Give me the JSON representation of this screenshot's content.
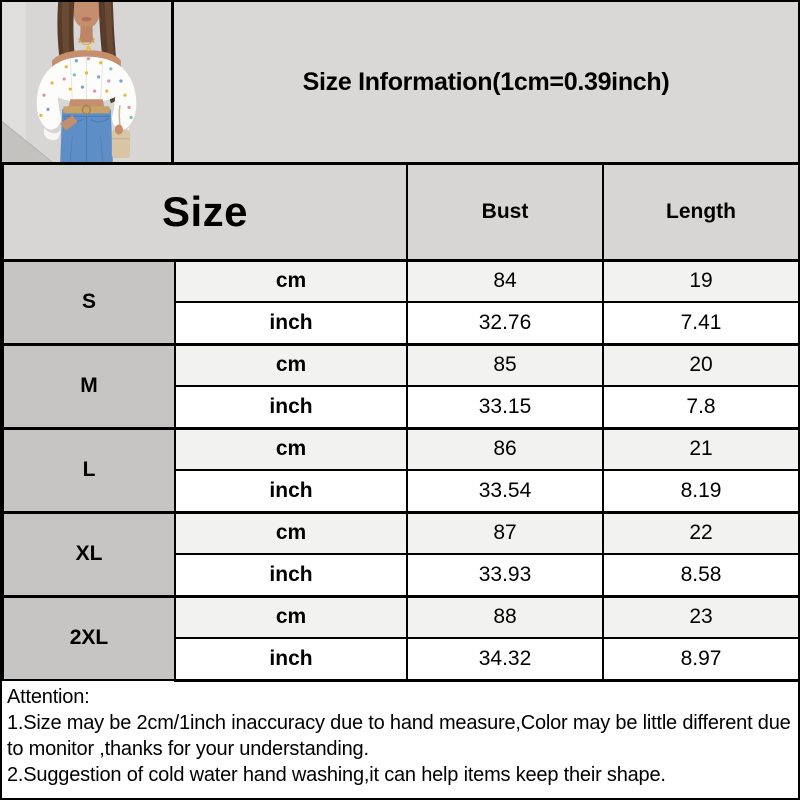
{
  "header": {
    "title": "Size Information(1cm=0.39inch)",
    "photo": {
      "description": "Model wearing a white off-shoulder floral-print crop top with high-waist blue jeans and a beige handbag"
    }
  },
  "table": {
    "size_column_header": "Size",
    "measure_headers": [
      "Bust",
      "Length"
    ],
    "unit_labels": [
      "cm",
      "inch"
    ],
    "rows": [
      {
        "size": "S",
        "cm": [
          "84",
          "19"
        ],
        "inch": [
          "32.76",
          "7.41"
        ]
      },
      {
        "size": "M",
        "cm": [
          "85",
          "20"
        ],
        "inch": [
          "33.15",
          "7.8"
        ]
      },
      {
        "size": "L",
        "cm": [
          "86",
          "21"
        ],
        "inch": [
          "33.54",
          "8.19"
        ]
      },
      {
        "size": "XL",
        "cm": [
          "87",
          "22"
        ],
        "inch": [
          "33.93",
          "8.58"
        ]
      },
      {
        "size": "2XL",
        "cm": [
          "88",
          "23"
        ],
        "inch": [
          "34.32",
          "8.97"
        ]
      }
    ]
  },
  "attention": {
    "heading": "Attention:",
    "notes": [
      "1.Size may be 2cm/1inch inaccuracy due to hand measure,Color may be little different due to monitor ,thanks for your understanding.",
      "2.Suggestion of cold water hand washing,it can help items keep their shape."
    ]
  },
  "colors": {
    "border": "#000000",
    "title_band_bg": "#d9d8d6",
    "column_header_bg": "#d7d6d4",
    "size_label_bg": "#c6c5c3",
    "cm_row_bg": "#f2f2f1",
    "inch_row_bg": "#ffffff",
    "text": "#000000"
  }
}
